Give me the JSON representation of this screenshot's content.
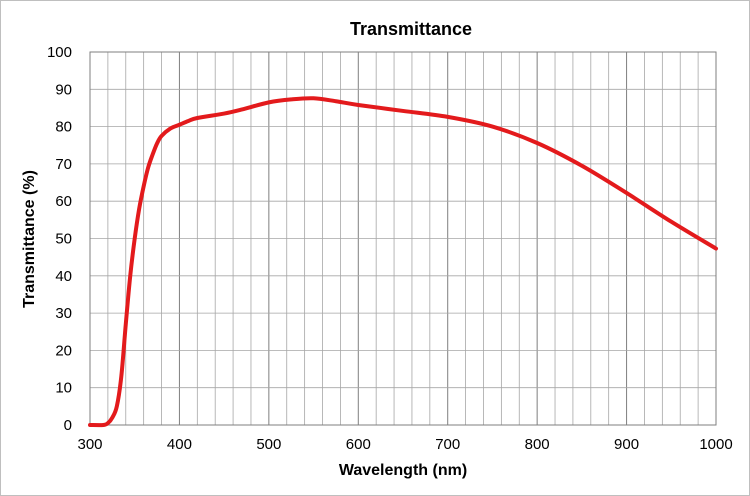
{
  "chart_data": {
    "type": "line",
    "title": "Transmittance",
    "xlabel": "Wavelength (nm)",
    "ylabel": "Transmittance (%)",
    "xlim": [
      300,
      1000
    ],
    "ylim": [
      0,
      100
    ],
    "x_ticks": [
      "300",
      "400",
      "500",
      "600",
      "700",
      "800",
      "900",
      "1000"
    ],
    "y_ticks": [
      "0",
      "10",
      "20",
      "30",
      "40",
      "50",
      "60",
      "70",
      "80",
      "90",
      "100"
    ],
    "grid": true,
    "series": [
      {
        "color": "#e31a1c",
        "x": [
          300,
          315,
          320,
          325,
          330,
          335,
          340,
          345,
          350,
          355,
          360,
          365,
          370,
          375,
          380,
          390,
          400,
          410,
          420,
          450,
          470,
          500,
          525,
          550,
          575,
          600,
          650,
          700,
          750,
          800,
          850,
          900,
          950,
          1000
        ],
        "y": [
          0,
          0,
          0.5,
          2,
          5,
          13,
          27,
          40,
          50,
          58,
          64,
          69,
          72.5,
          75.5,
          77.5,
          79.5,
          80.5,
          81.5,
          82.3,
          83.5,
          84.6,
          86.5,
          87.3,
          87.6,
          86.8,
          85.8,
          84.2,
          82.6,
          80,
          75.6,
          69.5,
          62.2,
          54.5,
          47.3
        ]
      }
    ]
  }
}
